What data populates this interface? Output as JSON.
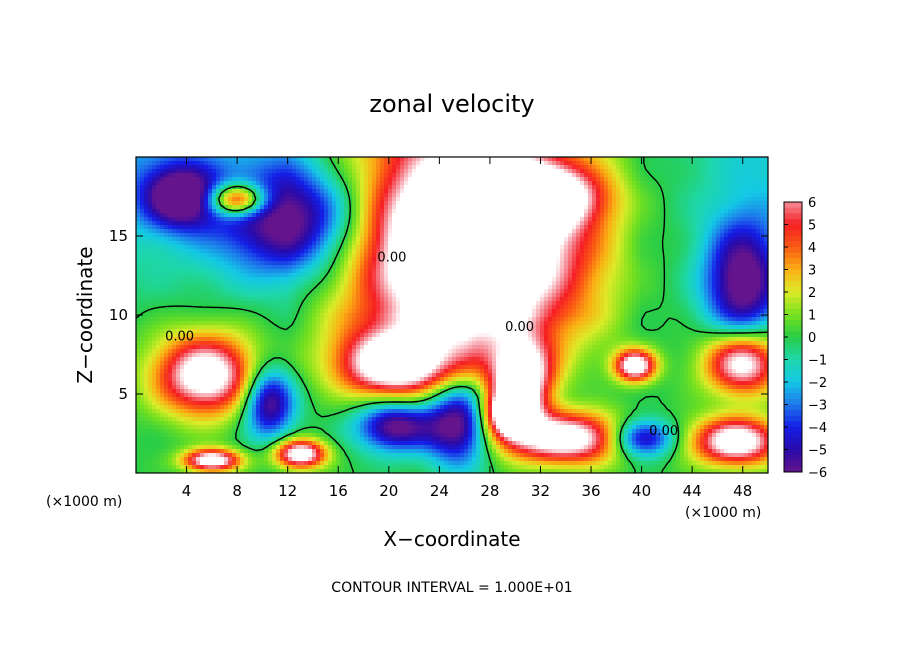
{
  "chart_data": {
    "type": "heatmap",
    "title": "zonal velocity",
    "xlabel": "X−coordinate",
    "ylabel": "Z−coordinate",
    "x_scale_note": "(×1000 m)",
    "z_scale_note": "(×1000 m)",
    "footer": "CONTOUR INTERVAL = 1.000E+01",
    "xlim": [
      0,
      50
    ],
    "ylim": [
      0,
      20
    ],
    "x_ticks": [
      4,
      8,
      12,
      16,
      20,
      24,
      28,
      32,
      36,
      40,
      44,
      48
    ],
    "y_ticks": [
      5,
      10,
      15
    ],
    "colorbar": {
      "ticks": [
        "6",
        "5",
        "4",
        "3",
        "2",
        "1",
        "0",
        "−1",
        "−2",
        "−3",
        "−4",
        "−5",
        "−6"
      ],
      "range": [
        -6,
        6
      ]
    },
    "contour_labels": [
      {
        "text": "0.00",
        "x": 2.3,
        "z": 8.4
      },
      {
        "text": "0.00",
        "x": 19.1,
        "z": 13.4
      },
      {
        "text": "0.00",
        "x": 29.2,
        "z": 9.0
      },
      {
        "text": "0.00",
        "x": 40.6,
        "z": 2.4
      }
    ],
    "features": [
      {
        "kind": "high",
        "x": 26.5,
        "z": 14.5,
        "rx": 8.0,
        "rz": 4.5
      },
      {
        "kind": "high",
        "x": 31.0,
        "z": 17.5,
        "rx": 5.0,
        "rz": 1.8
      },
      {
        "kind": "high",
        "x": 5.5,
        "z": 6.2,
        "rx": 4.0,
        "rz": 2.5
      },
      {
        "kind": "high",
        "x": 20.5,
        "z": 6.8,
        "rx": 4.5,
        "rz": 2.2
      },
      {
        "kind": "high",
        "x": 30.5,
        "z": 6.0,
        "rx": 2.5,
        "rz": 2.5
      },
      {
        "kind": "high",
        "x": 29.5,
        "z": 3.8,
        "rx": 2.0,
        "rz": 1.5
      },
      {
        "kind": "high",
        "x": 34.0,
        "z": 2.2,
        "rx": 5.0,
        "rz": 1.6
      },
      {
        "kind": "high",
        "x": 47.5,
        "z": 2.0,
        "rx": 3.5,
        "rz": 1.5
      },
      {
        "kind": "high",
        "x": 48.0,
        "z": 7.0,
        "rx": 3.0,
        "rz": 2.0
      },
      {
        "kind": "high",
        "x": 39.5,
        "z": 6.8,
        "rx": 1.6,
        "rz": 1.0
      },
      {
        "kind": "high",
        "x": 8.0,
        "z": 17.3,
        "rx": 2.2,
        "rz": 1.0
      },
      {
        "kind": "high",
        "x": 13.0,
        "z": 1.2,
        "rx": 2.0,
        "rz": 0.9
      },
      {
        "kind": "high",
        "x": 6.0,
        "z": 0.8,
        "rx": 2.2,
        "rz": 0.7
      },
      {
        "kind": "low",
        "x": 12.5,
        "z": 16.0,
        "rx": 6.0,
        "rz": 3.5
      },
      {
        "kind": "low",
        "x": 3.5,
        "z": 17.5,
        "rx": 3.0,
        "rz": 2.0
      },
      {
        "kind": "low",
        "x": 20.5,
        "z": 3.0,
        "rx": 3.0,
        "rz": 1.6
      },
      {
        "kind": "low",
        "x": 10.5,
        "z": 4.5,
        "rx": 2.0,
        "rz": 2.2
      },
      {
        "kind": "low",
        "x": 25.5,
        "z": 3.0,
        "rx": 2.5,
        "rz": 2.5
      },
      {
        "kind": "low",
        "x": 48.0,
        "z": 12.0,
        "rx": 3.0,
        "rz": 4.0
      },
      {
        "kind": "low",
        "x": 40.0,
        "z": 2.2,
        "rx": 2.5,
        "rz": 1.2
      }
    ]
  }
}
